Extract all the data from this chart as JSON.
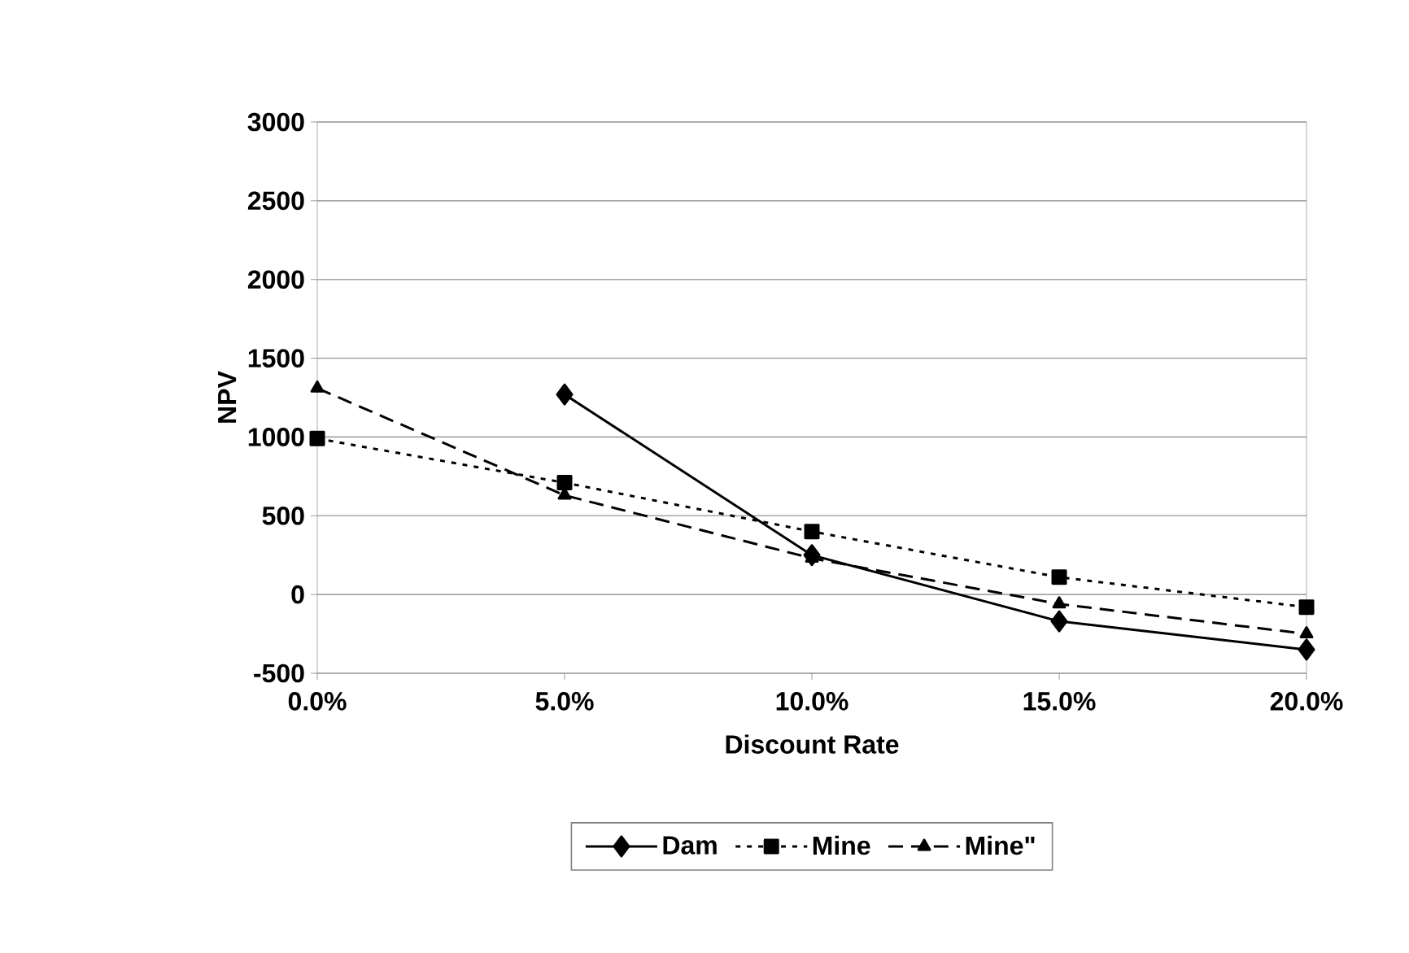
{
  "chart_data": {
    "type": "line",
    "xlabel": "Discount Rate",
    "ylabel": "NPV",
    "categories": [
      "0.0%",
      "5.0%",
      "10.0%",
      "15.0%",
      "20.0%"
    ],
    "series": [
      {
        "name": "Dam",
        "color": "#000000",
        "values": [
          null,
          1270,
          250,
          -170,
          -350
        ],
        "marker": "diamond",
        "line_style": "solid"
      },
      {
        "name": "Mine",
        "color": "#000000",
        "values": [
          990,
          710,
          400,
          110,
          -80
        ],
        "marker": "square",
        "line_style": "dotted"
      },
      {
        "name": "Mine\"",
        "color": "#000000",
        "values": [
          1310,
          630,
          230,
          -60,
          -250
        ],
        "marker": "triangle",
        "line_style": "dashed"
      }
    ],
    "ylim": [
      -500,
      3000
    ],
    "yticks": [
      -500,
      0,
      500,
      1000,
      1500,
      2000,
      2500,
      3000
    ],
    "grid": "y",
    "legend": "bottom"
  }
}
